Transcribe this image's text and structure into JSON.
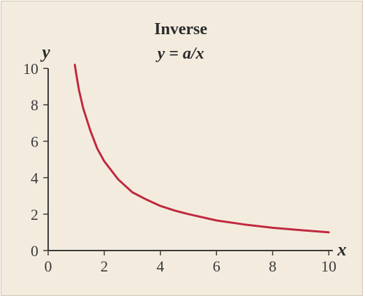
{
  "chart_data": {
    "type": "line",
    "title": "Inverse",
    "subtitle": "y = a/x",
    "xlabel": "x",
    "ylabel": "y",
    "xlim": [
      0,
      10
    ],
    "ylim": [
      0,
      10
    ],
    "xticks": [
      0,
      2,
      4,
      6,
      8,
      10
    ],
    "yticks": [
      0,
      2,
      4,
      6,
      8,
      10
    ],
    "grid": false,
    "series": [
      {
        "color": "#c0283e",
        "x": [
          0.95,
          1.0,
          1.1,
          1.25,
          1.5,
          1.75,
          2.0,
          2.5,
          3.0,
          3.5,
          4.0,
          4.5,
          5.0,
          6.0,
          7.0,
          8.0,
          9.0,
          10.0
        ],
        "y": [
          10.2,
          9.7,
          8.8,
          7.8,
          6.6,
          5.6,
          4.9,
          3.9,
          3.2,
          2.8,
          2.45,
          2.2,
          2.0,
          1.65,
          1.43,
          1.25,
          1.12,
          1.0
        ]
      }
    ]
  },
  "colors": {
    "background": "#f3ecde",
    "curve": "#c0283e",
    "axis": "#3a3a3a"
  }
}
